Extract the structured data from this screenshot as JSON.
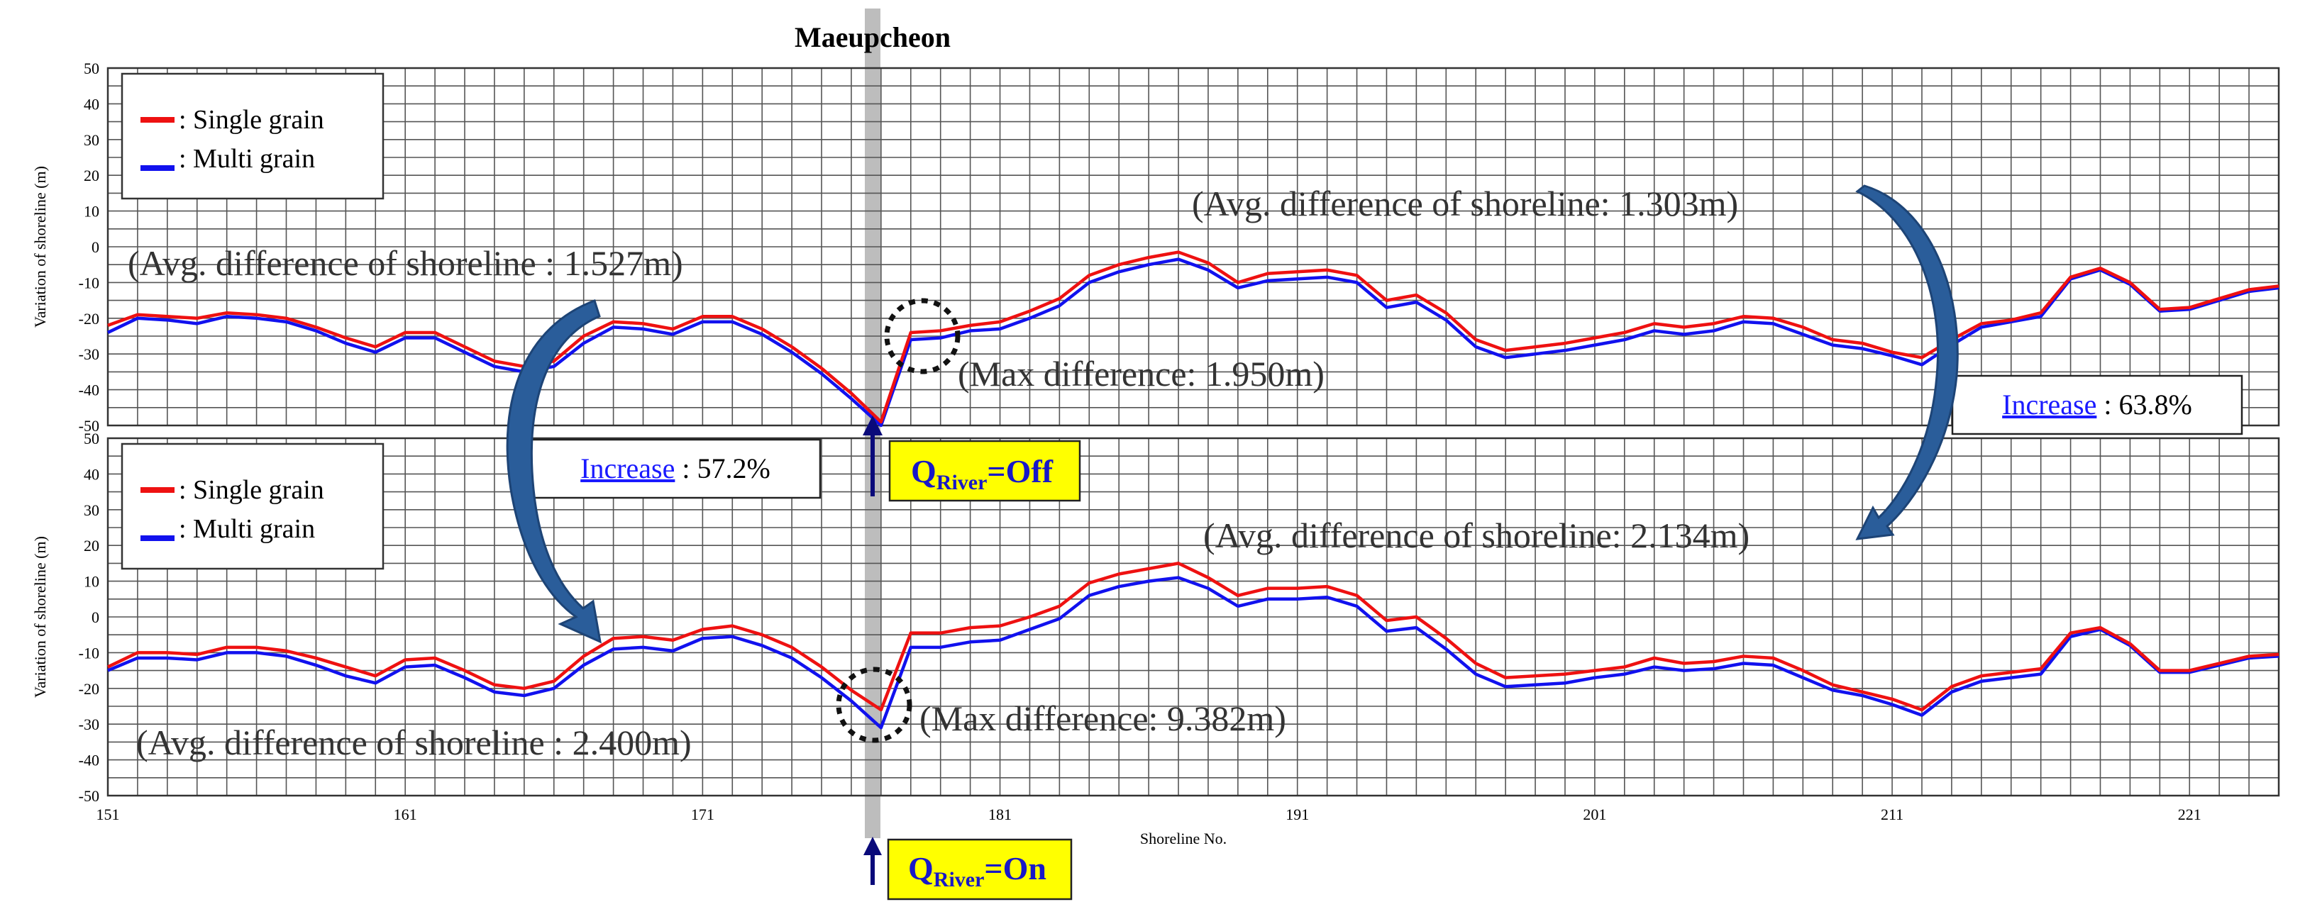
{
  "chart_data": [
    {
      "type": "line",
      "panel": "top",
      "title": "Maeupcheon",
      "xlabel": "Shoreline No.",
      "ylabel": "Variation of shoreline (m)",
      "xlim": [
        151,
        224
      ],
      "ylim": [
        -50,
        50
      ],
      "yticks": [
        50,
        40,
        30,
        20,
        10,
        0,
        -10,
        -20,
        -30,
        -40,
        -50
      ],
      "grid": true,
      "legend_position": "top-left",
      "x": [
        151,
        152,
        153,
        154,
        155,
        156,
        157,
        158,
        159,
        160,
        161,
        162,
        163,
        164,
        165,
        166,
        167,
        168,
        169,
        170,
        171,
        172,
        173,
        174,
        175,
        176,
        177,
        178,
        179,
        180,
        181,
        182,
        183,
        184,
        185,
        186,
        187,
        188,
        189,
        190,
        191,
        192,
        193,
        194,
        195,
        196,
        197,
        198,
        199,
        200,
        201,
        202,
        203,
        204,
        205,
        206,
        207,
        208,
        209,
        210,
        211,
        212,
        213,
        214,
        215,
        216,
        217,
        218,
        219,
        220,
        221,
        222,
        223,
        224
      ],
      "series": [
        {
          "name": ": Single grain",
          "color": "#ee1111",
          "values": [
            -22,
            -19,
            -19.5,
            -20,
            -18.5,
            -19,
            -20,
            -22.5,
            -25.5,
            -28,
            -24,
            -24,
            -28,
            -32,
            -33.5,
            -32,
            -25,
            -21,
            -21.5,
            -23,
            -19.5,
            -19.5,
            -23,
            -28,
            -34,
            -41,
            -49,
            -24,
            -23.5,
            -22,
            -21,
            -18,
            -14.5,
            -8,
            -5,
            -3,
            -1.5,
            -4.5,
            -10,
            -7.5,
            -7,
            -6.5,
            -8,
            -15,
            -13.5,
            -18.5,
            -26,
            -29,
            -28,
            -27,
            -25.5,
            -24,
            -21.5,
            -22.5,
            -21.5,
            -19.5,
            -20,
            -22.5,
            -26,
            -27,
            -29.5,
            -31,
            -26,
            -21.5,
            -20.5,
            -18.5,
            -8.5,
            -6,
            -10,
            -17.5,
            -17,
            -14.5,
            -12,
            -11
          ]
        },
        {
          "name": ": Multi grain",
          "color": "#1111ee",
          "values": [
            -24,
            -20,
            -20.5,
            -21.5,
            -19.5,
            -20,
            -21,
            -23.5,
            -27,
            -29.5,
            -25.5,
            -25.5,
            -29.5,
            -33.5,
            -35,
            -33.5,
            -27,
            -22.5,
            -23,
            -24.5,
            -21,
            -21,
            -24.5,
            -29.5,
            -35.5,
            -42.5,
            -50,
            -26,
            -25.5,
            -23.5,
            -23,
            -20,
            -16.5,
            -10,
            -7,
            -5,
            -3.5,
            -6.5,
            -11.5,
            -9.5,
            -9,
            -8.5,
            -10,
            -17,
            -15.5,
            -20.5,
            -28,
            -31,
            -30,
            -29,
            -27.5,
            -26,
            -23.5,
            -24.5,
            -23.5,
            -21,
            -21.5,
            -24.5,
            -27.5,
            -28.5,
            -30.5,
            -33,
            -27.5,
            -22.5,
            -21,
            -19.5,
            -9,
            -6.5,
            -10.5,
            -18,
            -17.5,
            -15,
            -12.5,
            -11.5
          ]
        }
      ]
    },
    {
      "type": "line",
      "panel": "bottom",
      "xlabel": "Shoreline No.",
      "ylabel": "Variation of shoreline (m)",
      "xlim": [
        151,
        224
      ],
      "ylim": [
        -50,
        50
      ],
      "xticks": [
        151,
        161,
        171,
        181,
        191,
        201,
        211,
        221
      ],
      "yticks": [
        50,
        40,
        30,
        20,
        10,
        0,
        -10,
        -20,
        -30,
        -40,
        -50
      ],
      "grid": true,
      "legend_position": "top-left",
      "x": [
        151,
        152,
        153,
        154,
        155,
        156,
        157,
        158,
        159,
        160,
        161,
        162,
        163,
        164,
        165,
        166,
        167,
        168,
        169,
        170,
        171,
        172,
        173,
        174,
        175,
        176,
        177,
        178,
        179,
        180,
        181,
        182,
        183,
        184,
        185,
        186,
        187,
        188,
        189,
        190,
        191,
        192,
        193,
        194,
        195,
        196,
        197,
        198,
        199,
        200,
        201,
        202,
        203,
        204,
        205,
        206,
        207,
        208,
        209,
        210,
        211,
        212,
        213,
        214,
        215,
        216,
        217,
        218,
        219,
        220,
        221,
        222,
        223,
        224
      ],
      "series": [
        {
          "name": ": Single grain",
          "color": "#ee1111",
          "values": [
            -14,
            -10,
            -10,
            -10.5,
            -8.5,
            -8.5,
            -9.5,
            -11.5,
            -14,
            -16.5,
            -12,
            -11.5,
            -15,
            -19,
            -20,
            -18,
            -11,
            -6,
            -5.5,
            -6.5,
            -3.5,
            -2.5,
            -5,
            -8.5,
            -14,
            -20.5,
            -26,
            -4.5,
            -4.5,
            -3,
            -2.5,
            0,
            3,
            9.5,
            12,
            13.5,
            15,
            11,
            6,
            8,
            8,
            8.5,
            6,
            -1,
            0,
            -6,
            -13,
            -17,
            -16.5,
            -16,
            -15,
            -14,
            -11.5,
            -13,
            -12.5,
            -11,
            -11.5,
            -15,
            -19,
            -21,
            -23,
            -26,
            -19.5,
            -16.5,
            -15.5,
            -14.5,
            -4.5,
            -3,
            -7.5,
            -15,
            -15,
            -13,
            -11,
            -10.5
          ]
        },
        {
          "name": ": Multi grain",
          "color": "#1111ee",
          "values": [
            -15,
            -11.5,
            -11.5,
            -12,
            -10,
            -10,
            -11,
            -13.5,
            -16.5,
            -18.5,
            -14,
            -13.5,
            -17,
            -21,
            -22,
            -20,
            -13.5,
            -9,
            -8.5,
            -9.5,
            -6,
            -5.5,
            -8,
            -11.5,
            -17,
            -23.5,
            -31,
            -8.5,
            -8.5,
            -7,
            -6.5,
            -3.5,
            -0.5,
            6,
            8.5,
            10,
            11,
            8,
            3,
            5,
            5,
            5.5,
            3,
            -4,
            -3,
            -9,
            -16,
            -19.5,
            -19,
            -18.5,
            -17,
            -16,
            -14,
            -15,
            -14.5,
            -13,
            -13.5,
            -17,
            -20.5,
            -22,
            -24.5,
            -27.5,
            -21,
            -18,
            -17,
            -16,
            -5.5,
            -3.5,
            -8,
            -15.5,
            -15.5,
            -13.5,
            -11.5,
            -11
          ]
        }
      ]
    }
  ],
  "annotations": {
    "top_left_avg": "(Avg. difference of shoreline : 1.527m)",
    "top_right_avg": "(Avg. difference of shoreline: 1.303m)",
    "top_max": "(Max difference: 1.950m)",
    "bottom_left_avg": "(Avg. difference of shoreline : 2.400m)",
    "bottom_right_avg": "(Avg. difference of shoreline: 2.134m)",
    "bottom_max": "(Max difference: 9.382m)",
    "increase_word": "Increase",
    "increase_left_value": " : 57.2%",
    "increase_right_value": " : 63.8%",
    "q_prefix": "Q",
    "q_sub": "River",
    "q_off": "=Off",
    "q_on": "=On",
    "river_marker_x": 176
  },
  "colors": {
    "single": "#ee1111",
    "multi": "#1111ee",
    "box_yellow": "#ffff00",
    "arrow_blue": "#2a5d9a",
    "river_band": "#bdbdbd",
    "up_arrow": "#0a0a7a"
  }
}
